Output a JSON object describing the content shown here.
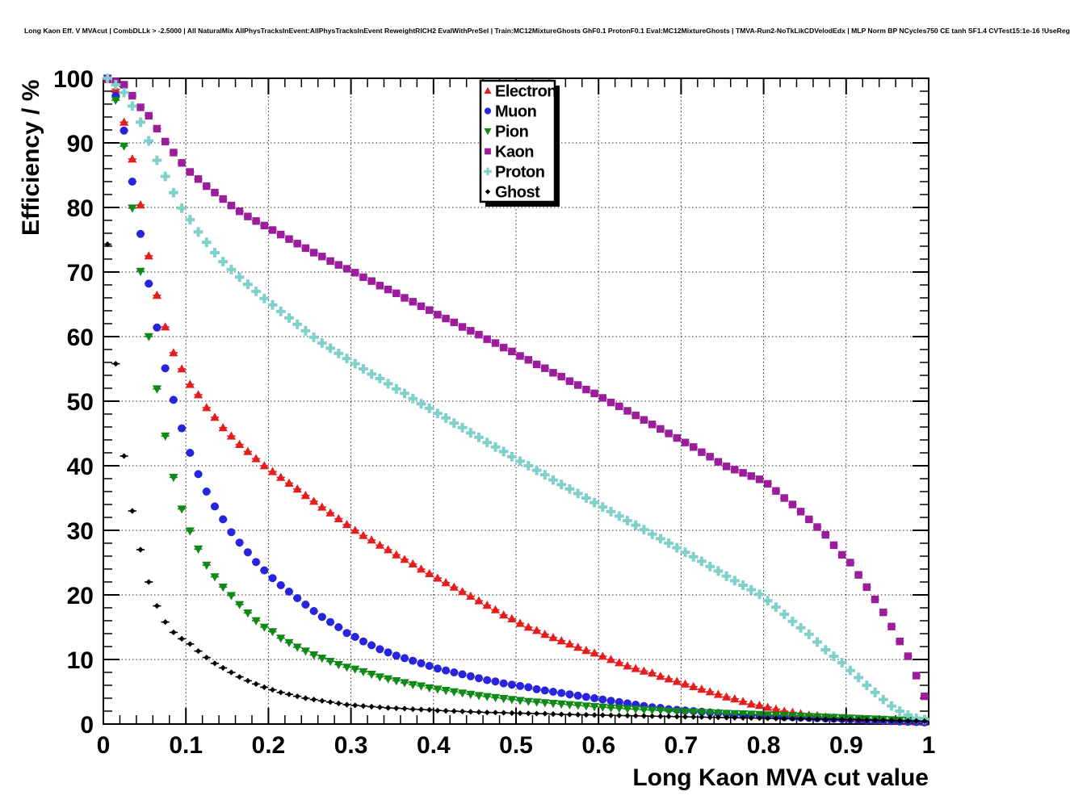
{
  "header": {
    "title": "Long Kaon Eff. V MVAcut | CombDLLk > -2.5000 | All NaturalMix AllPhysTracksInEvent:AllPhysTracksInEvent ReweightRICH2 EvalWithPreSel | Train:MC12MixtureGhosts GhF0.1 ProtonF0.1 Eval:MC12MixtureGhosts | TMVA-Run2-NoTkLikCDVelodEdx | MLP Norm BP NCycles750 CE tanh SF1.4 CVTest15:1e-16 !UseReg"
  },
  "legend": {
    "entries": [
      {
        "label": "Electron",
        "marker": "triangle-up",
        "color": "#e61d1d"
      },
      {
        "label": "Muon",
        "marker": "circle",
        "color": "#2823dd"
      },
      {
        "label": "Pion",
        "marker": "triangle-down",
        "color": "#108a16"
      },
      {
        "label": "Kaon",
        "marker": "square",
        "color": "#9b1d9b"
      },
      {
        "label": "Proton",
        "marker": "cross",
        "color": "#7fd0cb"
      },
      {
        "label": "Ghost",
        "marker": "diamond",
        "color": "#000000"
      }
    ]
  },
  "chart_data": {
    "type": "scatter",
    "title": "Long Kaon Eff. V MVAcut",
    "xlabel": "Long Kaon MVA cut value",
    "ylabel": "Efficiency / %",
    "xlim": [
      0,
      1
    ],
    "ylim": [
      0,
      100
    ],
    "grid": "dotted",
    "legend_position": "top-center",
    "x_axis": {
      "title": "Long Kaon MVA cut value",
      "major_ticks": [
        0,
        0.1,
        0.2,
        0.3,
        0.4,
        0.5,
        0.6,
        0.7,
        0.8,
        0.9,
        1
      ],
      "tick_labels": [
        "0",
        "0.1",
        "0.2",
        "0.3",
        "0.4",
        "0.5",
        "0.6",
        "0.7",
        "0.8",
        "0.9",
        "1"
      ],
      "minor_tick_step": 0.02
    },
    "y_axis": {
      "title": "Efficiency / %",
      "major_ticks": [
        0,
        10,
        20,
        30,
        40,
        50,
        60,
        70,
        80,
        90,
        100
      ],
      "tick_labels": [
        "0",
        "10",
        "20",
        "30",
        "40",
        "50",
        "60",
        "70",
        "80",
        "90",
        "100"
      ],
      "minor_tick_step": 2
    },
    "x_start": 0.005,
    "x_step": 0.01,
    "series": [
      {
        "name": "Electron",
        "marker": "triangle-up",
        "color": "#e61d1d",
        "values": [
          99.8,
          98.3,
          93.2,
          87.5,
          80.4,
          72.5,
          66.4,
          61.5,
          57.5,
          55.0,
          52.6,
          51.0,
          49.0,
          47.5,
          45.9,
          44.6,
          43.3,
          42.2,
          41.1,
          40.0,
          39.1,
          38.2,
          37.3,
          36.4,
          35.4,
          34.5,
          33.6,
          32.7,
          31.8,
          30.9,
          30.0,
          29.2,
          28.5,
          27.7,
          27.0,
          26.2,
          25.5,
          24.8,
          24.0,
          23.3,
          22.6,
          21.9,
          21.2,
          20.5,
          19.8,
          19.1,
          18.4,
          17.7,
          16.9,
          16.3,
          15.6,
          15.0,
          14.5,
          13.9,
          13.4,
          12.9,
          12.4,
          11.9,
          11.4,
          11.0,
          10.5,
          10.0,
          9.5,
          9.0,
          8.6,
          8.2,
          7.9,
          7.4,
          7.0,
          6.6,
          6.2,
          5.8,
          5.4,
          5.0,
          4.6,
          4.2,
          3.9,
          3.5,
          3.1,
          2.9,
          2.6,
          2.3,
          2.0,
          1.8,
          1.6,
          1.4,
          1.3,
          1.1,
          1.0,
          0.9,
          0.8,
          0.7,
          0.65,
          0.6,
          0.55,
          0.5,
          0.45,
          0.4,
          0.35,
          0.3
        ]
      },
      {
        "name": "Muon",
        "marker": "circle",
        "color": "#2823dd",
        "values": [
          99.9,
          97.3,
          91.9,
          84.0,
          75.9,
          68.2,
          61.4,
          55.1,
          50.2,
          45.8,
          42.0,
          38.7,
          36.0,
          33.7,
          31.7,
          29.7,
          28.1,
          26.6,
          25.1,
          23.8,
          22.6,
          21.5,
          20.5,
          19.5,
          18.5,
          17.5,
          16.6,
          15.8,
          15.0,
          14.1,
          13.5,
          12.8,
          12.2,
          11.6,
          11.1,
          10.6,
          10.2,
          9.8,
          9.4,
          9.0,
          8.6,
          8.3,
          8.0,
          7.7,
          7.4,
          7.1,
          6.8,
          6.6,
          6.3,
          6.1,
          5.9,
          5.7,
          5.4,
          5.2,
          5.0,
          4.8,
          4.6,
          4.4,
          4.2,
          4.0,
          3.8,
          3.6,
          3.4,
          3.2,
          3.0,
          2.8,
          2.6,
          2.5,
          2.3,
          2.2,
          2.1,
          2.0,
          1.9,
          1.8,
          1.7,
          1.6,
          1.5,
          1.45,
          1.4,
          1.3,
          1.25,
          1.2,
          1.1,
          1.05,
          1.0,
          0.95,
          0.9,
          0.85,
          0.8,
          0.75,
          0.7,
          0.65,
          0.6,
          0.55,
          0.5,
          0.45,
          0.4,
          0.35,
          0.3,
          0.25
        ]
      },
      {
        "name": "Pion",
        "marker": "triangle-down",
        "color": "#108a16",
        "values": [
          100,
          96.6,
          89.5,
          79.9,
          70.1,
          60.0,
          51.9,
          44.6,
          38.2,
          33.3,
          29.9,
          27.1,
          24.6,
          22.8,
          21.2,
          19.9,
          18.5,
          17.2,
          16.0,
          15.0,
          14.3,
          13.3,
          12.6,
          11.9,
          11.3,
          10.7,
          10.2,
          9.7,
          9.2,
          8.8,
          8.5,
          8.1,
          7.7,
          7.3,
          7.0,
          6.7,
          6.4,
          6.1,
          5.9,
          5.6,
          5.4,
          5.2,
          5.0,
          4.8,
          4.6,
          4.4,
          4.25,
          4.1,
          3.95,
          3.8,
          3.65,
          3.5,
          3.4,
          3.3,
          3.2,
          3.1,
          3.0,
          2.9,
          2.8,
          2.7,
          2.6,
          2.5,
          2.45,
          2.35,
          2.3,
          2.2,
          2.15,
          2.1,
          2.0,
          1.95,
          1.9,
          1.85,
          1.8,
          1.75,
          1.7,
          1.65,
          1.6,
          1.58,
          1.52,
          1.48,
          1.42,
          1.38,
          1.32,
          1.28,
          1.22,
          1.18,
          1.12,
          1.08,
          1.02,
          0.98,
          0.92,
          0.88,
          0.82,
          0.78,
          0.72,
          0.68,
          0.62,
          0.58,
          0.52,
          0.48
        ]
      },
      {
        "name": "Kaon",
        "marker": "square",
        "color": "#9b1d9b",
        "values": [
          100,
          99.5,
          99.0,
          97.3,
          95.5,
          94.2,
          92.2,
          90.2,
          88.5,
          86.9,
          85.5,
          84.4,
          83.3,
          82.3,
          81.3,
          80.3,
          79.4,
          78.6,
          77.9,
          77.2,
          76.5,
          75.8,
          75.1,
          74.4,
          73.7,
          73.0,
          72.4,
          71.7,
          71.1,
          70.5,
          69.9,
          69.2,
          68.6,
          67.9,
          67.3,
          66.7,
          66.0,
          65.4,
          64.7,
          64.1,
          63.4,
          62.8,
          62.2,
          61.5,
          60.9,
          60.3,
          59.6,
          59.0,
          58.3,
          57.7,
          57.0,
          56.4,
          55.7,
          55.1,
          54.4,
          53.8,
          53.1,
          52.5,
          51.8,
          51.2,
          50.5,
          49.8,
          49.2,
          48.5,
          47.8,
          47.1,
          46.4,
          45.7,
          45.0,
          44.3,
          43.6,
          42.9,
          42.1,
          41.4,
          40.6,
          39.9,
          39.4,
          38.9,
          38.4,
          37.9,
          37.2,
          36.1,
          35.0,
          34.0,
          32.9,
          31.7,
          30.5,
          29.3,
          27.7,
          26.2,
          25.0,
          23.1,
          21.2,
          19.3,
          17.3,
          15.1,
          12.8,
          10.5,
          7.5,
          4.3
        ]
      },
      {
        "name": "Proton",
        "marker": "cross",
        "color": "#7fd0cb",
        "values": [
          100,
          99.0,
          97.8,
          95.7,
          93.2,
          90.3,
          87.3,
          84.8,
          82.3,
          79.9,
          78.1,
          76.2,
          74.6,
          73.0,
          71.6,
          70.4,
          69.2,
          68.1,
          67.0,
          65.9,
          64.9,
          63.9,
          62.9,
          61.9,
          60.9,
          59.9,
          59.0,
          58.2,
          57.4,
          56.6,
          55.8,
          55.0,
          54.2,
          53.5,
          52.7,
          51.9,
          51.2,
          50.4,
          49.6,
          48.9,
          48.1,
          47.4,
          46.6,
          45.9,
          45.1,
          44.4,
          43.6,
          42.9,
          42.2,
          41.4,
          40.7,
          40.0,
          39.3,
          38.6,
          37.8,
          37.1,
          36.4,
          35.7,
          35.0,
          34.3,
          33.6,
          32.9,
          32.2,
          31.5,
          30.8,
          30.1,
          29.4,
          28.7,
          28.0,
          27.3,
          26.6,
          25.9,
          25.2,
          24.4,
          23.7,
          22.9,
          22.2,
          21.5,
          20.8,
          20.1,
          19.1,
          18.1,
          17.0,
          15.9,
          14.9,
          13.9,
          12.7,
          11.5,
          10.5,
          9.5,
          8.3,
          7.2,
          6.0,
          4.9,
          3.8,
          2.8,
          2.0,
          1.4,
          0.9,
          0.7
        ]
      },
      {
        "name": "Ghost",
        "marker": "diamond",
        "color": "#000000",
        "values": [
          74.3,
          55.8,
          41.5,
          33.0,
          27.0,
          22.0,
          18.3,
          15.8,
          14.2,
          13.2,
          12.4,
          11.3,
          10.3,
          9.4,
          8.7,
          8.0,
          7.3,
          6.7,
          6.2,
          5.7,
          5.3,
          4.9,
          4.6,
          4.3,
          4.0,
          3.8,
          3.6,
          3.4,
          3.2,
          3.0,
          2.9,
          2.8,
          2.7,
          2.6,
          2.5,
          2.45,
          2.4,
          2.3,
          2.25,
          2.2,
          2.1,
          2.05,
          2.0,
          1.95,
          1.9,
          1.85,
          1.8,
          1.78,
          1.75,
          1.7,
          1.68,
          1.65,
          1.62,
          1.6,
          1.55,
          1.5,
          1.48,
          1.45,
          1.43,
          1.4,
          1.38,
          1.35,
          1.32,
          1.3,
          1.28,
          1.25,
          1.22,
          1.2,
          1.18,
          1.15,
          1.12,
          1.1,
          1.08,
          1.05,
          1.02,
          1.0,
          0.98,
          0.95,
          0.93,
          0.9,
          0.88,
          0.86,
          0.84,
          0.82,
          0.8,
          0.78,
          0.76,
          0.74,
          0.72,
          0.7,
          0.68,
          0.65,
          0.62,
          0.6,
          0.58,
          0.55,
          0.52,
          0.5,
          0.48,
          0.45
        ]
      }
    ]
  }
}
